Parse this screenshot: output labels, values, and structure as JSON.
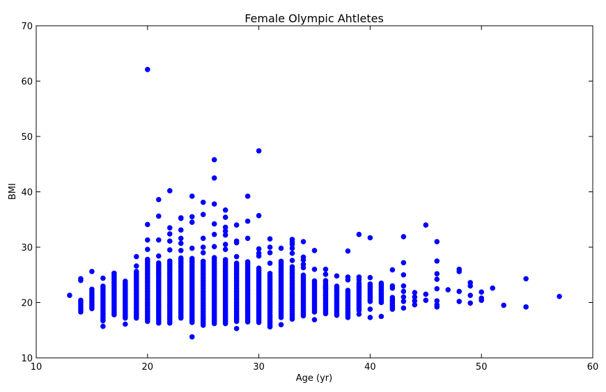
{
  "chart_data": {
    "type": "scatter",
    "title": "Female Olympic Ahtletes",
    "xlabel": "Age (yr)",
    "ylabel": "BMI",
    "xlim": [
      10,
      60
    ],
    "ylim": [
      10,
      70
    ],
    "xticks": [
      10,
      20,
      30,
      40,
      50,
      60
    ],
    "yticks": [
      10,
      20,
      30,
      40,
      50,
      60,
      70
    ],
    "grid": false,
    "legend": "none",
    "marker_color": "#0000ff",
    "series": [
      {
        "columns": [
          {
            "age": 13,
            "min": 21.3,
            "max": 21.3
          },
          {
            "age": 14,
            "min": 18.3,
            "max": 20.5
          },
          {
            "age": 15,
            "min": 18.9,
            "max": 22.4
          },
          {
            "age": 16,
            "min": 17.0,
            "max": 23.0
          },
          {
            "age": 17,
            "min": 17.8,
            "max": 25.2
          },
          {
            "age": 18,
            "min": 17.2,
            "max": 24.0
          },
          {
            "age": 19,
            "min": 17.2,
            "max": 25.7
          },
          {
            "age": 20,
            "min": 16.6,
            "max": 28.0
          },
          {
            "age": 21,
            "min": 16.3,
            "max": 27.3
          },
          {
            "age": 22,
            "min": 16.3,
            "max": 27.8
          },
          {
            "age": 23,
            "min": 17.2,
            "max": 28.1
          },
          {
            "age": 24,
            "min": 16.4,
            "max": 28.2
          },
          {
            "age": 25,
            "min": 15.9,
            "max": 27.5
          },
          {
            "age": 26,
            "min": 16.2,
            "max": 28.2
          },
          {
            "age": 27,
            "min": 16.2,
            "max": 27.8
          },
          {
            "age": 28,
            "min": 16.6,
            "max": 27.3
          },
          {
            "age": 29,
            "min": 16.5,
            "max": 27.5
          },
          {
            "age": 30,
            "min": 16.4,
            "max": 26.4
          },
          {
            "age": 31,
            "min": 15.8,
            "max": 25.4
          },
          {
            "age": 32,
            "min": 17.3,
            "max": 27.7
          },
          {
            "age": 33,
            "min": 17.0,
            "max": 26.7
          },
          {
            "age": 34,
            "min": 17.6,
            "max": 25.0
          },
          {
            "age": 35,
            "min": 18.3,
            "max": 24.2
          },
          {
            "age": 36,
            "min": 18.0,
            "max": 24.0
          },
          {
            "age": 37,
            "min": 17.7,
            "max": 23.0
          },
          {
            "age": 38,
            "min": 17.3,
            "max": 22.2
          },
          {
            "age": 39,
            "min": 18.6,
            "max": 23.5
          },
          {
            "age": 40,
            "min": 20.2,
            "max": 23.5
          },
          {
            "age": 41,
            "min": 20.0,
            "max": 23.6
          },
          {
            "age": 42,
            "min": 18.8,
            "max": 21.0
          }
        ],
        "points": [
          [
            14,
            24.0
          ],
          [
            14,
            24.3
          ],
          [
            15,
            25.6
          ],
          [
            16,
            15.7
          ],
          [
            16,
            16.7
          ],
          [
            16,
            24.4
          ],
          [
            17,
            25.3
          ],
          [
            18,
            16.1
          ],
          [
            19,
            26.6
          ],
          [
            19,
            28.3
          ],
          [
            20,
            62.1
          ],
          [
            20,
            34.1
          ],
          [
            20,
            31.3
          ],
          [
            20,
            29.6
          ],
          [
            21,
            38.6
          ],
          [
            21,
            35.6
          ],
          [
            21,
            31.3
          ],
          [
            21,
            28.4
          ],
          [
            22,
            40.2
          ],
          [
            22,
            33.5
          ],
          [
            22,
            32.4
          ],
          [
            22,
            31.1
          ],
          [
            22,
            29.5
          ],
          [
            23,
            35.3
          ],
          [
            23,
            35.2
          ],
          [
            23,
            33.1
          ],
          [
            23,
            31.6
          ],
          [
            23,
            30.7
          ],
          [
            23,
            29.4
          ],
          [
            24,
            39.2
          ],
          [
            24,
            35.5
          ],
          [
            24,
            34.5
          ],
          [
            24,
            29.8
          ],
          [
            24,
            13.8
          ],
          [
            25,
            38.1
          ],
          [
            25,
            35.9
          ],
          [
            25,
            31.6
          ],
          [
            25,
            30.0
          ],
          [
            25,
            29.0
          ],
          [
            26,
            45.8
          ],
          [
            26,
            42.5
          ],
          [
            26,
            37.8
          ],
          [
            26,
            34.2
          ],
          [
            26,
            32.3
          ],
          [
            26,
            30.1
          ],
          [
            27,
            36.7
          ],
          [
            27,
            35.4
          ],
          [
            27,
            33.6
          ],
          [
            27,
            32.9
          ],
          [
            27,
            32.2
          ],
          [
            27,
            30.5
          ],
          [
            27,
            29.6
          ],
          [
            28,
            34.0
          ],
          [
            28,
            31.1
          ],
          [
            28,
            30.8
          ],
          [
            28,
            28.3
          ],
          [
            28,
            15.3
          ],
          [
            29,
            39.2
          ],
          [
            29,
            34.7
          ],
          [
            29,
            31.6
          ],
          [
            30,
            47.4
          ],
          [
            30,
            35.7
          ],
          [
            30,
            29.7
          ],
          [
            30,
            28.9
          ],
          [
            30,
            28.4
          ],
          [
            31,
            31.5
          ],
          [
            31,
            30.0
          ],
          [
            31,
            29.0
          ],
          [
            31,
            27.1
          ],
          [
            31,
            15.6
          ],
          [
            32,
            29.8
          ],
          [
            32,
            16.0
          ],
          [
            33,
            31.4
          ],
          [
            33,
            30.9
          ],
          [
            33,
            30.5
          ],
          [
            33,
            29.8
          ],
          [
            33,
            28.9
          ],
          [
            33,
            27.6
          ],
          [
            34,
            31.0
          ],
          [
            34,
            28.2
          ],
          [
            34,
            27.7
          ],
          [
            34,
            26.9
          ],
          [
            34,
            26.3
          ],
          [
            35,
            29.4
          ],
          [
            35,
            26.0
          ],
          [
            35,
            16.9
          ],
          [
            36,
            26.0
          ],
          [
            36,
            25.1
          ],
          [
            36,
            23.0
          ],
          [
            36,
            22.6
          ],
          [
            37,
            24.8
          ],
          [
            38,
            29.3
          ],
          [
            38,
            24.6
          ],
          [
            38,
            24.1
          ],
          [
            39,
            32.3
          ],
          [
            39,
            24.6
          ],
          [
            39,
            24.1
          ],
          [
            39,
            17.9
          ],
          [
            40,
            31.7
          ],
          [
            40,
            24.5
          ],
          [
            40,
            18.8
          ],
          [
            40,
            17.3
          ],
          [
            41,
            17.5
          ],
          [
            42,
            25.9
          ],
          [
            42,
            23.0
          ],
          [
            42,
            22.6
          ],
          [
            43,
            31.9
          ],
          [
            43,
            27.2
          ],
          [
            43,
            25.0
          ],
          [
            43,
            23.0
          ],
          [
            43,
            22.0
          ],
          [
            43,
            21.0
          ],
          [
            43,
            20.2
          ],
          [
            43,
            19.0
          ],
          [
            44,
            21.8
          ],
          [
            44,
            21.0
          ],
          [
            44,
            20.3
          ],
          [
            44,
            19.6
          ],
          [
            45,
            34.0
          ],
          [
            45,
            21.5
          ],
          [
            45,
            20.4
          ],
          [
            46,
            31.0
          ],
          [
            46,
            27.5
          ],
          [
            46,
            25.2
          ],
          [
            46,
            24.2
          ],
          [
            46,
            22.5
          ],
          [
            46,
            20.3
          ],
          [
            46,
            19.6
          ],
          [
            46,
            19.2
          ],
          [
            47,
            22.3
          ],
          [
            48,
            26.0
          ],
          [
            48,
            25.6
          ],
          [
            48,
            22.0
          ],
          [
            48,
            20.2
          ],
          [
            49,
            23.6
          ],
          [
            49,
            23.0
          ],
          [
            49,
            21.3
          ],
          [
            49,
            19.9
          ],
          [
            50,
            21.9
          ],
          [
            50,
            20.8
          ],
          [
            50,
            20.4
          ],
          [
            51,
            22.6
          ],
          [
            52,
            19.5
          ],
          [
            54,
            24.3
          ],
          [
            54,
            19.2
          ],
          [
            57,
            21.1
          ]
        ]
      }
    ]
  }
}
